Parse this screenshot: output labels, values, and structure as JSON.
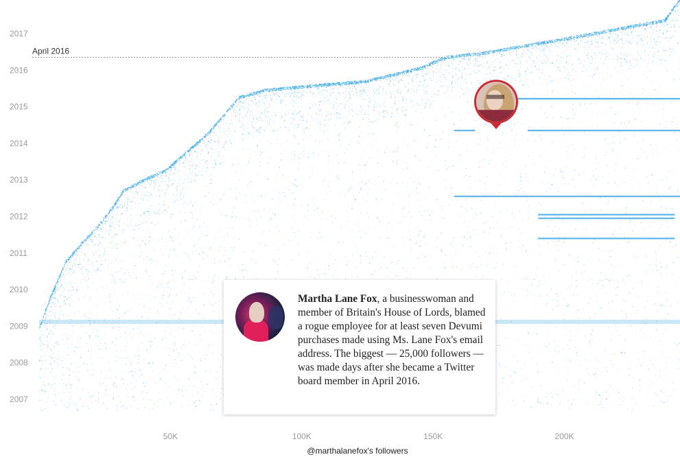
{
  "chart_data": {
    "type": "scatter",
    "xlabel": "@marthalanefox's followers",
    "x_ticks": [
      {
        "value": 50000,
        "label": "50K"
      },
      {
        "value": 100000,
        "label": "100K"
      },
      {
        "value": 150000,
        "label": "150K"
      },
      {
        "value": 200000,
        "label": "200K"
      }
    ],
    "y_ticks": [
      "2007",
      "2008",
      "2009",
      "2010",
      "2011",
      "2012",
      "2013",
      "2014",
      "2015",
      "2016",
      "2017"
    ],
    "xlim": [
      0,
      244000
    ],
    "ylim": [
      2006.6,
      2018.0
    ],
    "grid": false,
    "point_color": "#3fa9e6",
    "frontier": [
      {
        "x": 0,
        "y": 2009.0
      },
      {
        "x": 4000,
        "y": 2009.8
      },
      {
        "x": 10000,
        "y": 2010.8
      },
      {
        "x": 16000,
        "y": 2011.3
      },
      {
        "x": 22000,
        "y": 2011.75
      },
      {
        "x": 28000,
        "y": 2012.3
      },
      {
        "x": 32000,
        "y": 2012.75
      },
      {
        "x": 36000,
        "y": 2012.9
      },
      {
        "x": 40000,
        "y": 2013.05
      },
      {
        "x": 48000,
        "y": 2013.3
      },
      {
        "x": 56000,
        "y": 2013.8
      },
      {
        "x": 64000,
        "y": 2014.3
      },
      {
        "x": 70000,
        "y": 2014.8
      },
      {
        "x": 76000,
        "y": 2015.3
      },
      {
        "x": 86000,
        "y": 2015.5
      },
      {
        "x": 125000,
        "y": 2015.75
      },
      {
        "x": 145000,
        "y": 2016.1
      },
      {
        "x": 155000,
        "y": 2016.4
      },
      {
        "x": 168000,
        "y": 2016.5
      },
      {
        "x": 180000,
        "y": 2016.65
      },
      {
        "x": 200000,
        "y": 2016.9
      },
      {
        "x": 215000,
        "y": 2017.1
      },
      {
        "x": 238000,
        "y": 2017.4
      },
      {
        "x": 244000,
        "y": 2018.0
      }
    ],
    "bulk_bands": [
      {
        "x_start": 158000,
        "x_end": 166000,
        "y": 2014.35
      },
      {
        "x_start": 186000,
        "x_end": 244000,
        "y": 2014.35
      },
      {
        "x_start": 168000,
        "x_end": 244000,
        "y": 2015.22
      },
      {
        "x_start": 158000,
        "x_end": 244000,
        "y": 2012.55
      },
      {
        "x_start": 190000,
        "x_end": 242000,
        "y": 2012.05
      },
      {
        "x_start": 190000,
        "x_end": 242000,
        "y": 2011.95
      },
      {
        "x_start": 190000,
        "x_end": 242000,
        "y": 2011.4
      },
      {
        "x_start": 0,
        "x_end": 244000,
        "y": 2009.12
      }
    ],
    "annotations": [
      {
        "label": "April 2016",
        "y": 2016.35,
        "style": "dashed-line"
      }
    ],
    "marker": {
      "x": 174000,
      "y": 2014.35
    },
    "colors": {
      "marker_ring": "#cc2b34",
      "card_shadow": "#cccccc"
    }
  },
  "card": {
    "name": "Martha Lane Fox",
    "text": ", a businesswoman and member of Britain's House of Lords, blamed a rogue employee for at least seven Devumi purchases made using Ms. Lane Fox's email address. The biggest — 25,000 followers — was made days after she became a Twitter board member in April 2016."
  }
}
